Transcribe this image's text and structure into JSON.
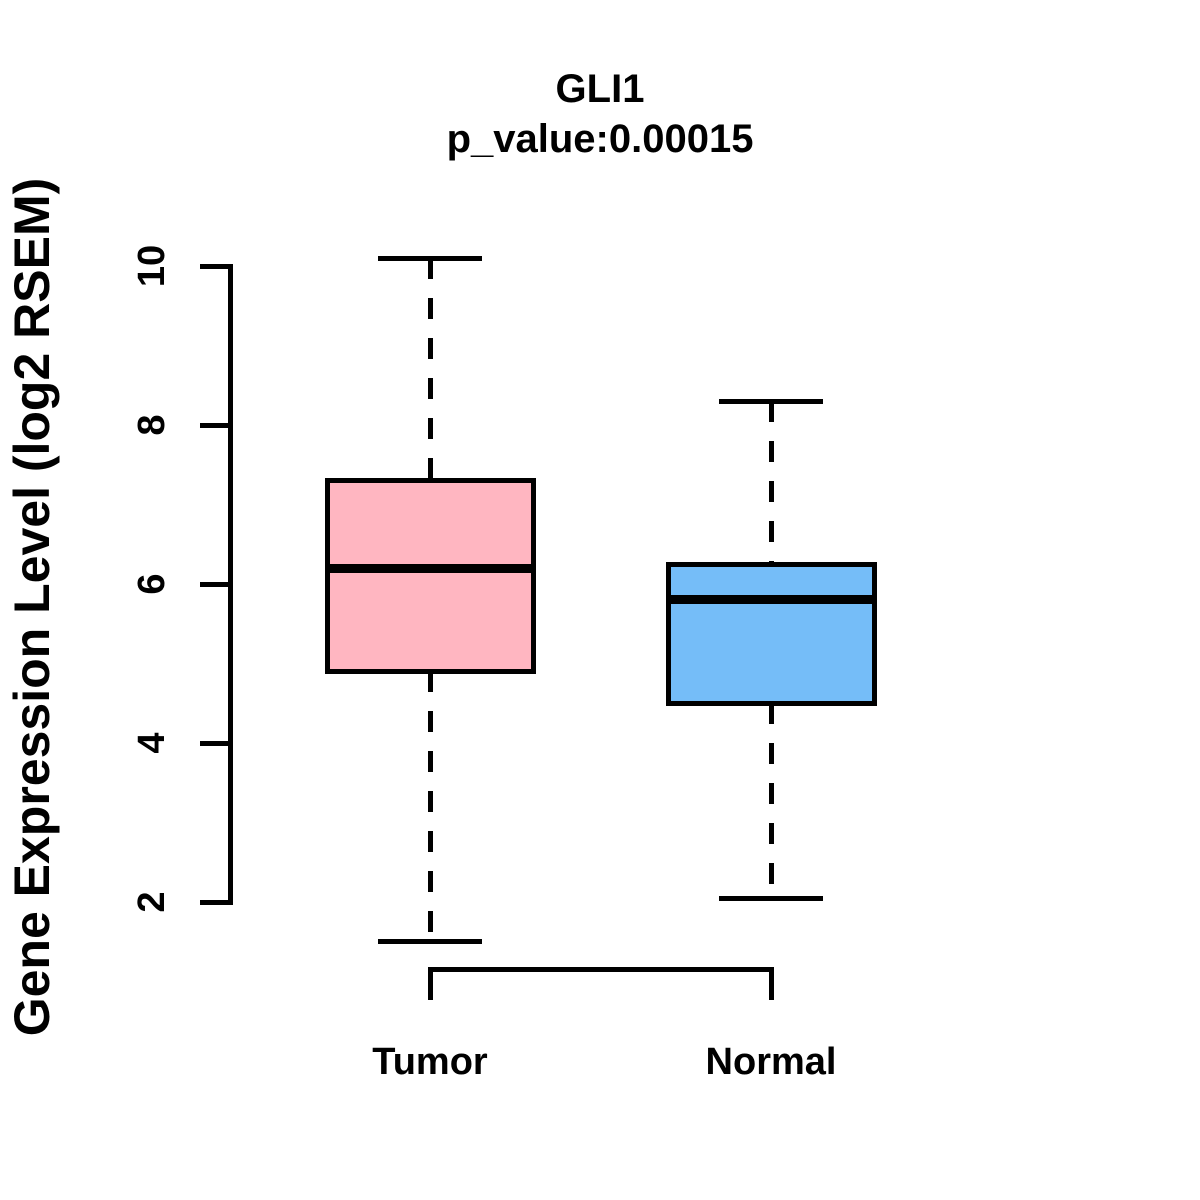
{
  "chart_data": {
    "type": "boxplot",
    "title": "GLI1",
    "subtitle": "p_value:0.00015",
    "p_value": 0.00015,
    "ylabel": "Gene Expression Level (log2 RSEM)",
    "xlabel": "",
    "ylim": [
      2,
      10
    ],
    "yticks": [
      2,
      4,
      6,
      8,
      10
    ],
    "grid": false,
    "legend": "none",
    "groups": [
      {
        "label": "Tumor",
        "fill": "#FFB6C1",
        "whisker_low": 1.5,
        "q1": 4.9,
        "median": 6.2,
        "q3": 7.3,
        "whisker_high": 10.1
      },
      {
        "label": "Normal",
        "fill": "#75BDF8",
        "whisker_low": 2.05,
        "q1": 4.5,
        "median": 5.8,
        "q3": 6.25,
        "whisker_high": 8.3
      }
    ],
    "colors": {
      "stroke": "#000000",
      "background": "#FFFFFF",
      "tumor_fill": "#FFB6C1",
      "normal_fill": "#75BDF8"
    }
  }
}
